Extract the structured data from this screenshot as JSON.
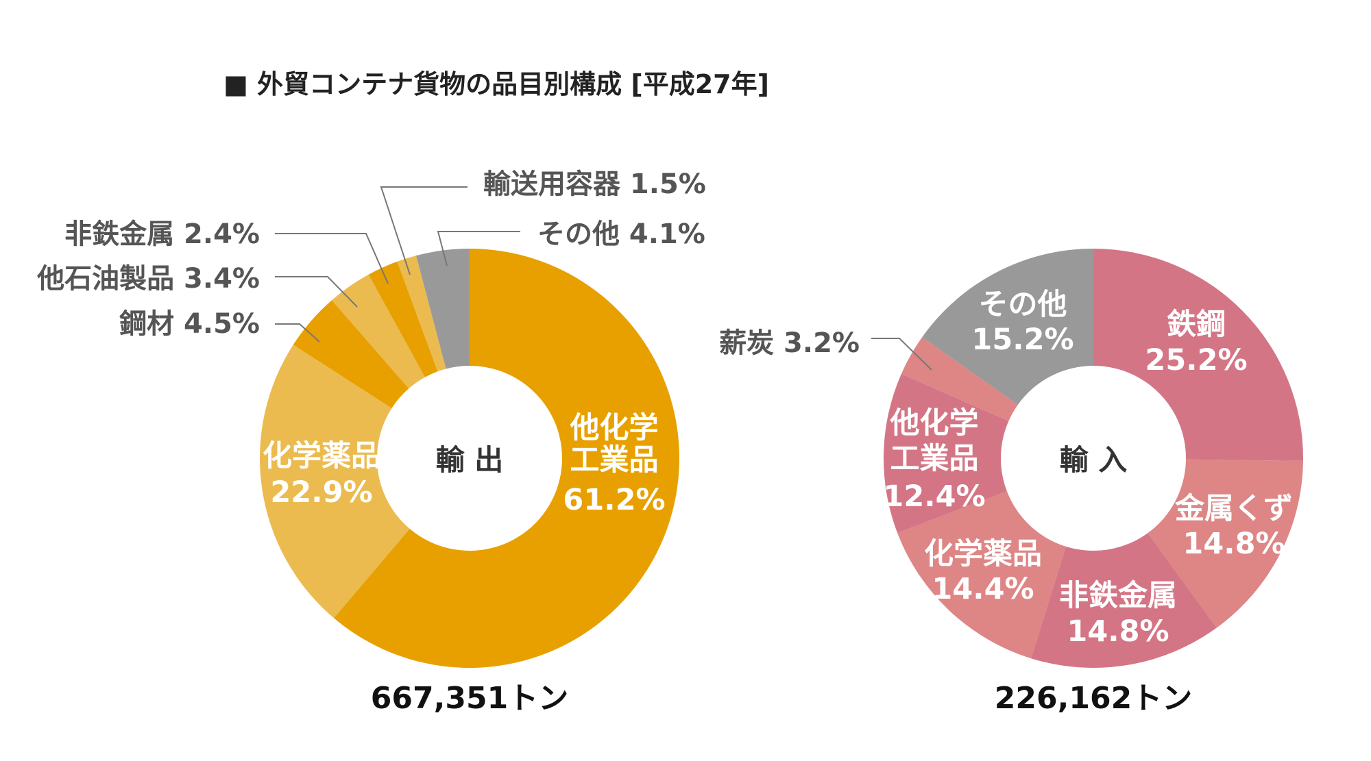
{
  "title": "■ 外貿コンテナ貨物の品目別構成 [平成27年]",
  "chart_data": [
    {
      "type": "pie",
      "donut": true,
      "center_label": "輸 出",
      "total": "667,351トン",
      "slices": [
        {
          "label_lines": [
            "他化学",
            "工業品"
          ],
          "label": "他化学工業品",
          "value": 61.2,
          "value_label": "61.2%",
          "color": "#E8A000"
        },
        {
          "label_lines": [
            "化学薬品"
          ],
          "label": "化学薬品",
          "value": 22.9,
          "value_label": "22.9%",
          "color": "#EBBB50"
        },
        {
          "label": "鋼材",
          "value": 4.5,
          "value_label": "鋼材 4.5%",
          "color": "#E8A000"
        },
        {
          "label": "他石油製品",
          "value": 3.4,
          "value_label": "他石油製品 3.4%",
          "color": "#EBBB50"
        },
        {
          "label": "非鉄金属",
          "value": 2.4,
          "value_label": "非鉄金属 2.4%",
          "color": "#E8A000"
        },
        {
          "label": "輸送用容器",
          "value": 1.5,
          "value_label": "輸送用容器 1.5%",
          "color": "#EBBB50"
        },
        {
          "label": "その他",
          "value": 4.1,
          "value_label": "その他 4.1%",
          "color": "#999999"
        }
      ]
    },
    {
      "type": "pie",
      "donut": true,
      "center_label": "輸 入",
      "total": "226,162トン",
      "slices": [
        {
          "label": "鉄鋼",
          "value": 25.2,
          "value_label": "25.2%",
          "color": "#D47585"
        },
        {
          "label": "金属くず",
          "value": 14.8,
          "value_label": "14.8%",
          "color": "#DE8585"
        },
        {
          "label": "非鉄金属",
          "value": 14.8,
          "value_label": "14.8%",
          "color": "#D47585"
        },
        {
          "label": "化学薬品",
          "value": 14.4,
          "value_label": "14.4%",
          "color": "#DE8585"
        },
        {
          "label_lines": [
            "他化学",
            "工業品"
          ],
          "label": "他化学工業品",
          "value": 12.4,
          "value_label": "12.4%",
          "color": "#D47585"
        },
        {
          "label": "薪炭",
          "value": 3.2,
          "value_label": "薪炭 3.2%",
          "color": "#DE8585"
        },
        {
          "label": "その他",
          "value": 15.2,
          "value_label": "15.2%",
          "color": "#999999"
        }
      ]
    }
  ]
}
